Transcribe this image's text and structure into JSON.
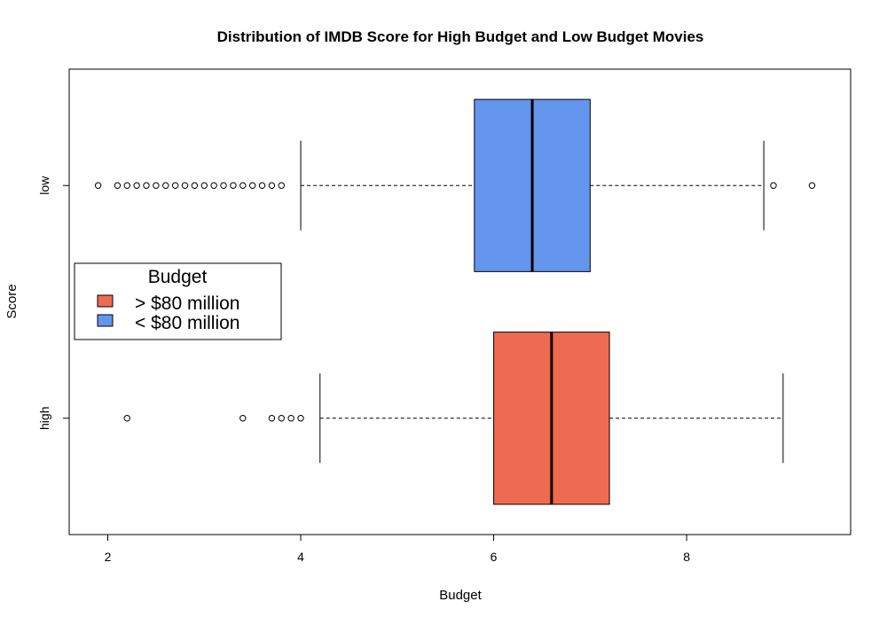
{
  "chart_data": {
    "type": "boxplot",
    "orientation": "horizontal",
    "title": "Distribution of IMDB Score for High Budget and Low Budget Movies",
    "xlabel": "Budget",
    "ylabel": "Score",
    "xlim": [
      1.6,
      9.7
    ],
    "x_ticks": [
      2,
      4,
      6,
      8
    ],
    "grid": false,
    "categories": [
      "high",
      "low"
    ],
    "series": [
      {
        "category": "high",
        "color": "#EE6A50",
        "whisker_low": 4.2,
        "q1": 6.0,
        "median": 6.6,
        "q3": 7.2,
        "whisker_high": 9.0,
        "outliers": [
          2.2,
          3.4,
          3.7,
          3.8,
          3.9,
          4.0
        ]
      },
      {
        "category": "low",
        "color": "#6495ED",
        "whisker_low": 4.0,
        "q1": 5.8,
        "median": 6.4,
        "q3": 7.0,
        "whisker_high": 8.8,
        "outliers": [
          1.9,
          2.1,
          2.2,
          2.3,
          2.4,
          2.5,
          2.6,
          2.7,
          2.8,
          2.9,
          3.0,
          3.1,
          3.2,
          3.3,
          3.4,
          3.5,
          3.6,
          3.7,
          3.8,
          8.9,
          9.3
        ]
      }
    ],
    "legend": {
      "title": "Budget",
      "placement": "left",
      "entries": [
        {
          "label": "> $80 million",
          "color": "#EE6A50"
        },
        {
          "label": "< $80 million",
          "color": "#6495ED"
        }
      ]
    }
  }
}
